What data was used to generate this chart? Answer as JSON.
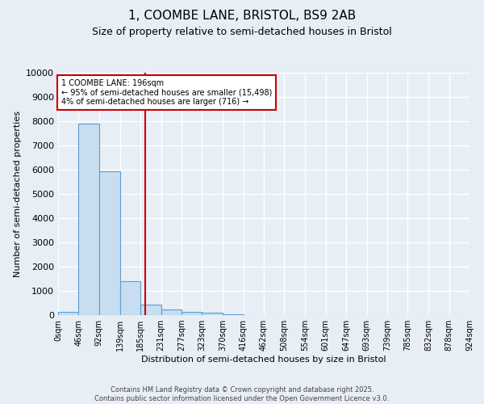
{
  "title": "1, COOMBE LANE, BRISTOL, BS9 2AB",
  "subtitle": "Size of property relative to semi-detached houses in Bristol",
  "xlabel": "Distribution of semi-detached houses by size in Bristol",
  "ylabel": "Number of semi-detached properties",
  "bin_edges": [
    0,
    46,
    92,
    139,
    185,
    231,
    277,
    323,
    370,
    416,
    462,
    508,
    554,
    601,
    647,
    693,
    739,
    785,
    832,
    878,
    924
  ],
  "bin_labels": [
    "0sqm",
    "46sqm",
    "92sqm",
    "139sqm",
    "185sqm",
    "231sqm",
    "277sqm",
    "323sqm",
    "370sqm",
    "416sqm",
    "462sqm",
    "508sqm",
    "554sqm",
    "601sqm",
    "647sqm",
    "693sqm",
    "739sqm",
    "785sqm",
    "832sqm",
    "878sqm",
    "924sqm"
  ],
  "bar_heights": [
    150,
    7900,
    5950,
    1400,
    450,
    220,
    120,
    90,
    50,
    15,
    8,
    5,
    3,
    2,
    1,
    1,
    0,
    0,
    0,
    0
  ],
  "bar_facecolor": "#c8ddf0",
  "bar_edgecolor": "#5a9fd4",
  "property_value": 196,
  "vline_color": "#cc0000",
  "annotation_text": "1 COOMBE LANE: 196sqm\n← 95% of semi-detached houses are smaller (15,498)\n4% of semi-detached houses are larger (716) →",
  "annotation_box_color": "#cc0000",
  "ylim": [
    0,
    10000
  ],
  "yticks": [
    0,
    1000,
    2000,
    3000,
    4000,
    5000,
    6000,
    7000,
    8000,
    9000,
    10000
  ],
  "footer_line1": "Contains HM Land Registry data © Crown copyright and database right 2025.",
  "footer_line2": "Contains public sector information licensed under the Open Government Licence v3.0.",
  "bg_color": "#e8eef5",
  "plot_bg_color": "#e8eef5",
  "grid_color": "#ffffff",
  "title_fontsize": 11,
  "subtitle_fontsize": 9
}
